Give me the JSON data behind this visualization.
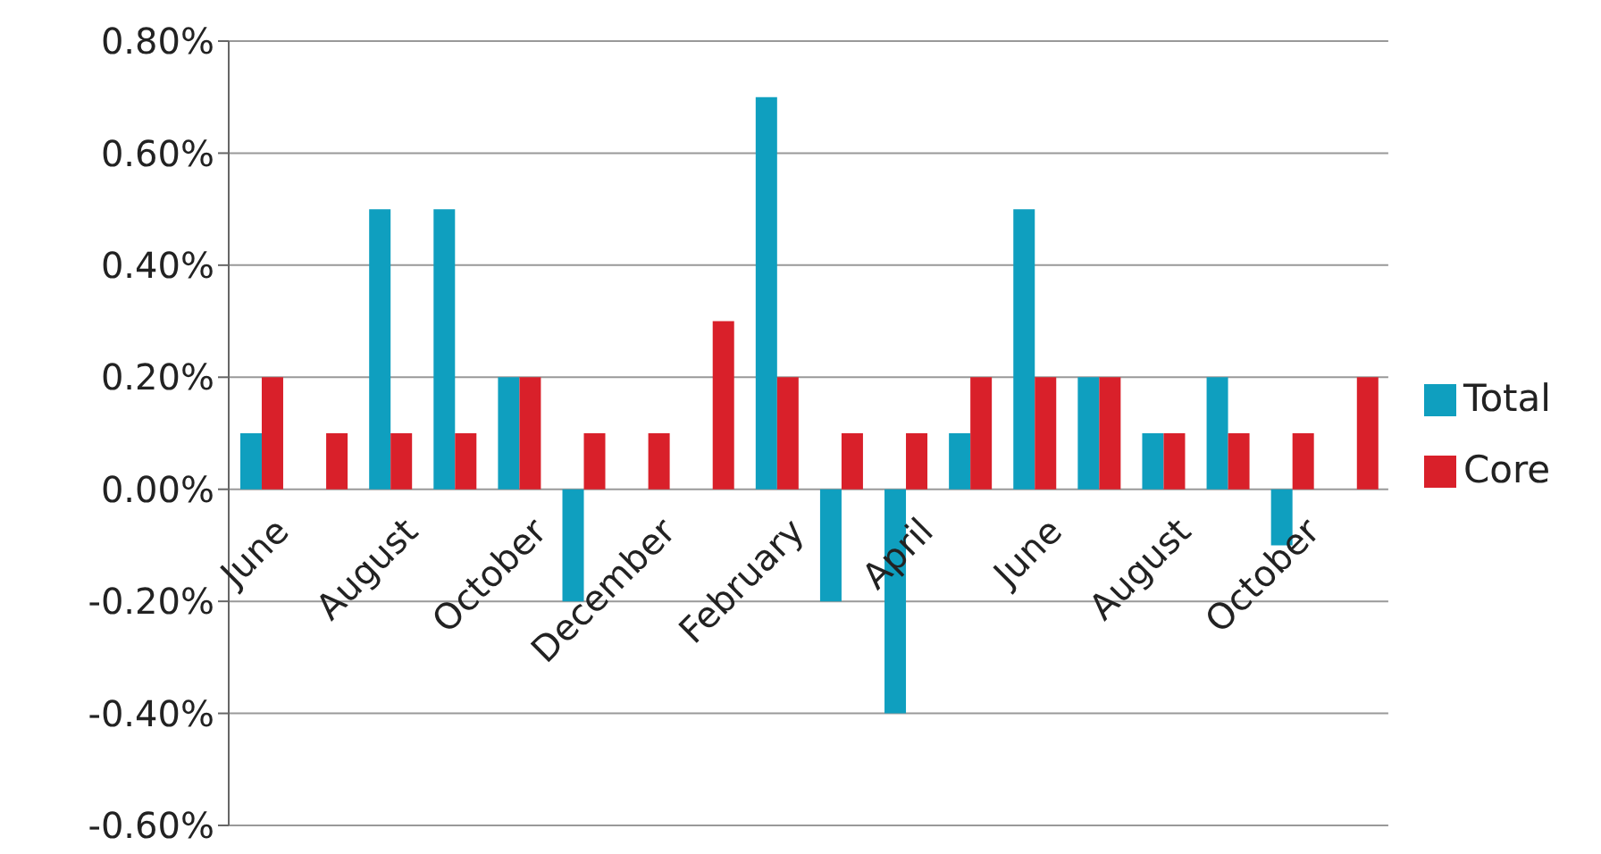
{
  "chart_data": {
    "type": "bar",
    "categories": [
      "June",
      null,
      "August",
      null,
      "October",
      null,
      "December",
      null,
      "February",
      null,
      "April",
      null,
      "June",
      null,
      "August",
      null,
      "October",
      null
    ],
    "series": [
      {
        "name": "Total",
        "color": "#0f9fbf",
        "values": [
          0.1,
          0,
          0.5,
          0.5,
          0.2,
          -0.2,
          0,
          0,
          0.7,
          -0.2,
          -0.4,
          0.1,
          0.5,
          0.2,
          0.1,
          0.2,
          -0.1,
          0
        ]
      },
      {
        "name": "Core",
        "color": "#d9202a",
        "values": [
          0.2,
          0.1,
          0.1,
          0.1,
          0.2,
          0.1,
          0.1,
          0.3,
          0.2,
          0.1,
          0.1,
          0.2,
          0.2,
          0.2,
          0.1,
          0.1,
          0.1,
          0.2
        ]
      }
    ],
    "ylim": [
      -0.6,
      0.8
    ],
    "yticks": [
      {
        "value": -0.6,
        "label": "-0.60%"
      },
      {
        "value": -0.4,
        "label": "-0.40%"
      },
      {
        "value": -0.2,
        "label": "-0.20%"
      },
      {
        "value": 0,
        "label": "0.00%"
      },
      {
        "value": 0.2,
        "label": "0.20%"
      },
      {
        "value": 0.4,
        "label": "0.40%"
      },
      {
        "value": 0.6,
        "label": "0.60%"
      },
      {
        "value": 0.8,
        "label": "0.80%"
      }
    ],
    "grid": "y",
    "legend": "right"
  }
}
